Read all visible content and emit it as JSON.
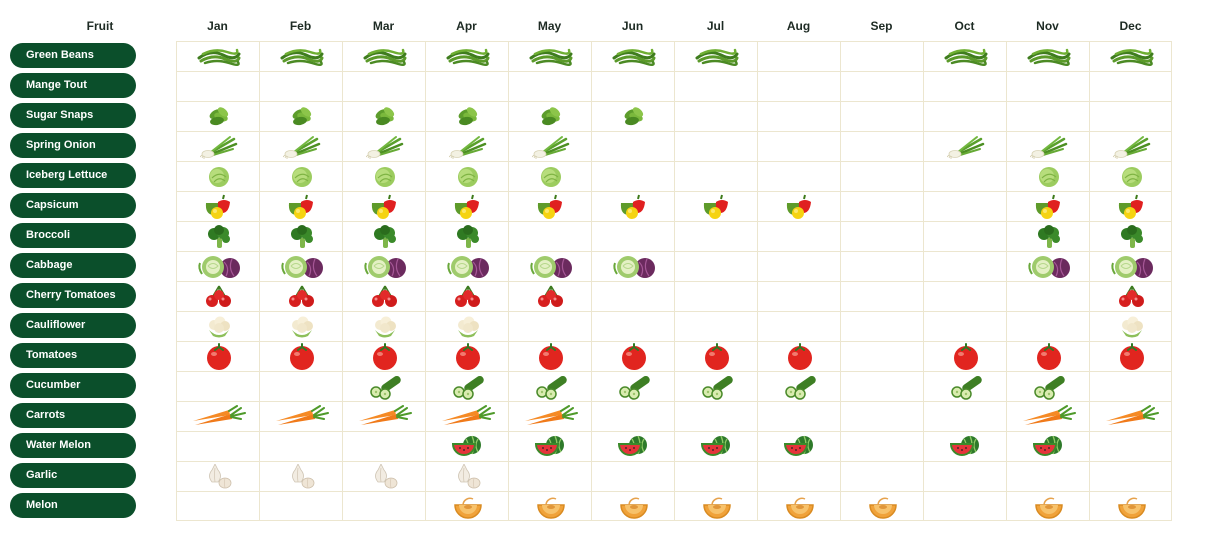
{
  "header": {
    "row_label": "Fruit",
    "months": [
      "Jan",
      "Feb",
      "Mar",
      "Apr",
      "May",
      "Jun",
      "Jul",
      "Aug",
      "Sep",
      "Oct",
      "Nov",
      "Dec"
    ]
  },
  "produce": [
    {
      "name": "Green Beans",
      "icon": "green-beans-icon",
      "months": [
        1,
        1,
        1,
        1,
        1,
        1,
        1,
        0,
        0,
        1,
        1,
        1
      ]
    },
    {
      "name": "Mange Tout",
      "icon": "mange-tout-icon",
      "months": [
        0,
        0,
        0,
        0,
        0,
        0,
        0,
        0,
        0,
        0,
        0,
        0
      ]
    },
    {
      "name": "Sugar Snaps",
      "icon": "sugar-snaps-icon",
      "months": [
        1,
        1,
        1,
        1,
        1,
        1,
        0,
        0,
        0,
        0,
        0,
        0
      ]
    },
    {
      "name": "Spring Onion",
      "icon": "spring-onion-icon",
      "months": [
        1,
        1,
        1,
        1,
        1,
        0,
        0,
        0,
        0,
        1,
        1,
        1
      ]
    },
    {
      "name": "Iceberg Lettuce",
      "icon": "iceberg-lettuce-icon",
      "months": [
        1,
        1,
        1,
        1,
        1,
        0,
        0,
        0,
        0,
        0,
        1,
        1
      ]
    },
    {
      "name": "Capsicum",
      "icon": "capsicum-icon",
      "months": [
        1,
        1,
        1,
        1,
        1,
        1,
        1,
        1,
        0,
        0,
        1,
        1
      ]
    },
    {
      "name": "Broccoli",
      "icon": "broccoli-icon",
      "months": [
        1,
        1,
        1,
        1,
        0,
        0,
        0,
        0,
        0,
        0,
        1,
        1
      ]
    },
    {
      "name": "Cabbage",
      "icon": "cabbage-icon",
      "months": [
        1,
        1,
        1,
        1,
        1,
        1,
        0,
        0,
        0,
        0,
        1,
        1
      ]
    },
    {
      "name": "Cherry Tomatoes",
      "icon": "cherry-tomatoes-icon",
      "months": [
        1,
        1,
        1,
        1,
        1,
        0,
        0,
        0,
        0,
        0,
        0,
        1
      ]
    },
    {
      "name": "Cauliflower",
      "icon": "cauliflower-icon",
      "months": [
        1,
        1,
        1,
        1,
        0,
        0,
        0,
        0,
        0,
        0,
        0,
        1
      ]
    },
    {
      "name": "Tomatoes",
      "icon": "tomato-icon",
      "months": [
        1,
        1,
        1,
        1,
        1,
        1,
        1,
        1,
        0,
        1,
        1,
        1
      ]
    },
    {
      "name": "Cucumber",
      "icon": "cucumber-icon",
      "months": [
        0,
        0,
        1,
        1,
        1,
        1,
        1,
        1,
        0,
        1,
        1,
        0
      ]
    },
    {
      "name": "Carrots",
      "icon": "carrot-icon",
      "months": [
        1,
        1,
        1,
        1,
        1,
        0,
        0,
        0,
        0,
        0,
        1,
        1
      ]
    },
    {
      "name": "Water Melon",
      "icon": "watermelon-icon",
      "months": [
        0,
        0,
        0,
        1,
        1,
        1,
        1,
        1,
        0,
        1,
        1,
        0
      ]
    },
    {
      "name": "Garlic",
      "icon": "garlic-icon",
      "months": [
        1,
        1,
        1,
        1,
        0,
        0,
        0,
        0,
        0,
        0,
        0,
        0
      ]
    },
    {
      "name": "Melon",
      "icon": "melon-icon",
      "months": [
        0,
        0,
        0,
        1,
        1,
        1,
        1,
        1,
        1,
        0,
        1,
        1
      ]
    }
  ],
  "colors": {
    "pill": "#0b4f2b",
    "grid_line": "#ece6cf"
  }
}
